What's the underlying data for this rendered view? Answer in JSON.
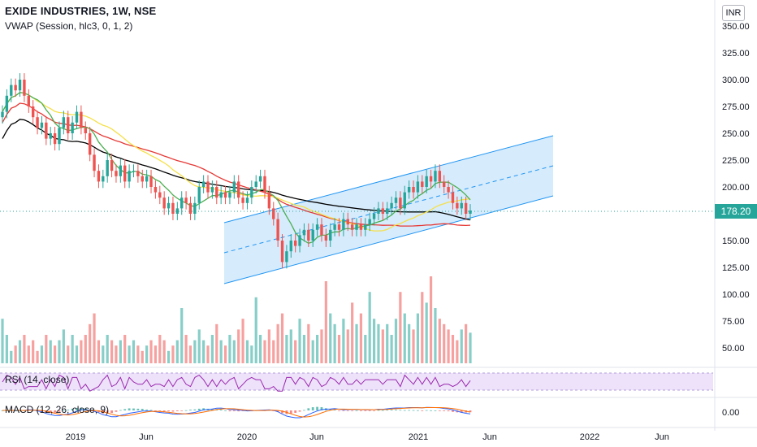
{
  "header": {
    "symbol_title": "EXIDE INDUSTRIES, 1W, NSE",
    "vwap_label": "VWAP (Session, hlc3, 0, 1, 2)",
    "currency": "INR"
  },
  "price_axis": {
    "ticks": [
      "350.00",
      "325.00",
      "300.00",
      "275.00",
      "250.00",
      "225.00",
      "200.00",
      "150.00",
      "125.00",
      "100.00",
      "75.00",
      "50.00"
    ],
    "last_price": "178.20"
  },
  "time_axis": {
    "ticks": [
      "2019",
      "Jun",
      "2020",
      "Jun",
      "2021",
      "Jun",
      "2022",
      "Jun"
    ]
  },
  "rsi": {
    "label": "RSI (14, close)"
  },
  "macd": {
    "label": "MACD (12, 26, close, 9)",
    "axis_value": "0.00"
  },
  "colors": {
    "up": "#26a69a",
    "down": "#ef5350",
    "channel_fill": "#cfe7fb",
    "channel_line": "#2196f3",
    "ma_black": "#000000",
    "ma_red": "#e53935",
    "ma_yellow": "#f5e04a",
    "ma_green": "#4caf50",
    "rsi_band": "#ede2f9",
    "rsi_line": "#9c27b0"
  },
  "chart_data": {
    "type": "candlestick",
    "title": "EXIDE INDUSTRIES, 1W, NSE",
    "price_range": [
      100,
      350
    ],
    "last_price": 178.2,
    "closes": [
      270,
      285,
      295,
      290,
      300,
      285,
      275,
      265,
      255,
      260,
      245,
      250,
      240,
      255,
      265,
      250,
      260,
      270,
      255,
      250,
      230,
      215,
      205,
      210,
      225,
      215,
      210,
      220,
      205,
      215,
      215,
      210,
      205,
      210,
      200,
      195,
      190,
      180,
      185,
      175,
      180,
      190,
      185,
      175,
      185,
      200,
      205,
      195,
      200,
      190,
      195,
      190,
      195,
      205,
      190,
      185,
      190,
      200,
      205,
      210,
      195,
      180,
      170,
      150,
      130,
      140,
      150,
      145,
      155,
      160,
      150,
      160,
      165,
      155,
      150,
      160,
      165,
      160,
      170,
      165,
      160,
      165,
      160,
      165,
      170,
      175,
      180,
      175,
      180,
      185,
      190,
      180,
      195,
      200,
      195,
      205,
      200,
      210,
      205,
      215,
      205,
      200,
      195,
      185,
      180,
      185,
      175,
      178
    ],
    "volumes": [
      75,
      60,
      45,
      50,
      55,
      60,
      50,
      55,
      45,
      50,
      60,
      55,
      50,
      55,
      65,
      50,
      60,
      50,
      55,
      60,
      70,
      80,
      55,
      50,
      60,
      55,
      50,
      55,
      60,
      50,
      55,
      50,
      45,
      50,
      55,
      50,
      60,
      55,
      45,
      50,
      55,
      85,
      60,
      50,
      55,
      65,
      55,
      50,
      60,
      70,
      55,
      50,
      60,
      55,
      65,
      75,
      55,
      50,
      95,
      60,
      55,
      65,
      55,
      70,
      80,
      60,
      65,
      55,
      75,
      60,
      70,
      55,
      60,
      65,
      110,
      80,
      70,
      60,
      75,
      65,
      90,
      70,
      80,
      60,
      100,
      75,
      70,
      65,
      70,
      60,
      75,
      100,
      80,
      70,
      65,
      80,
      100,
      90,
      120,
      85,
      75,
      70,
      65,
      60,
      55,
      65,
      70,
      62
    ]
  }
}
